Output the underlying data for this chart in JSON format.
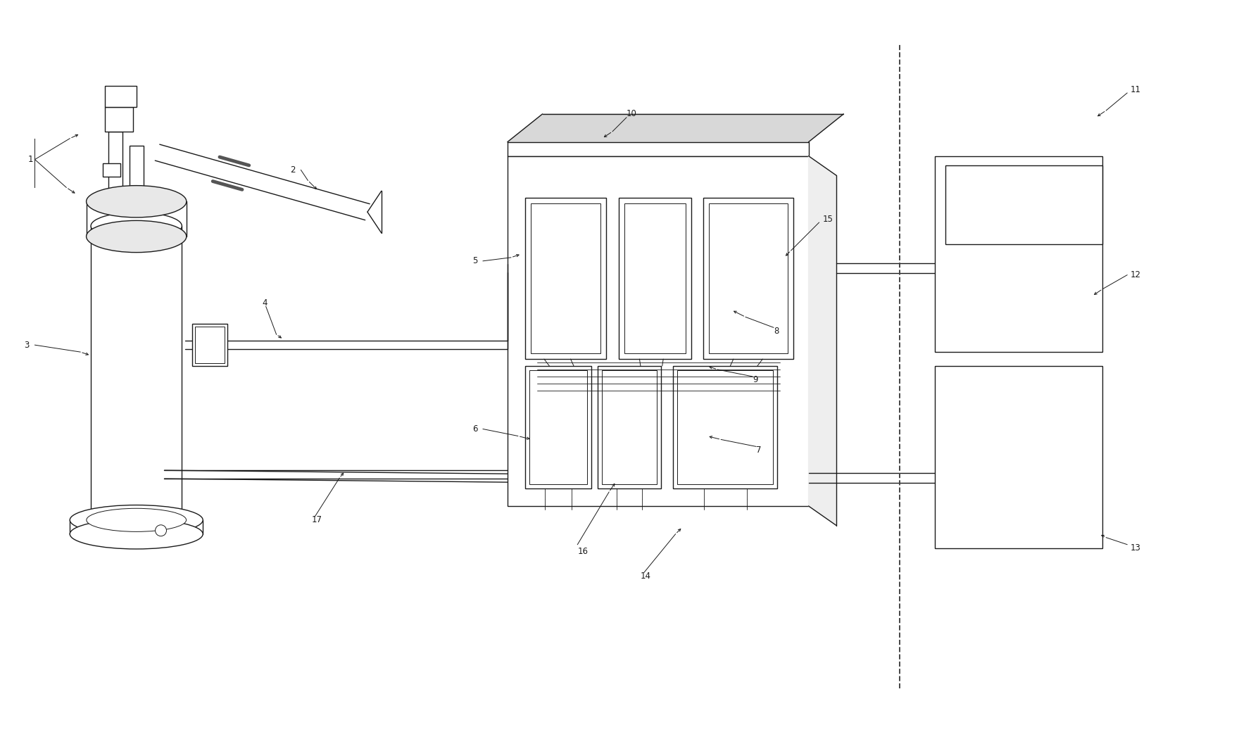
{
  "bg_color": "#ffffff",
  "line_color": "#1a1a1a",
  "fig_width": 17.7,
  "fig_height": 10.4,
  "dpi": 100
}
